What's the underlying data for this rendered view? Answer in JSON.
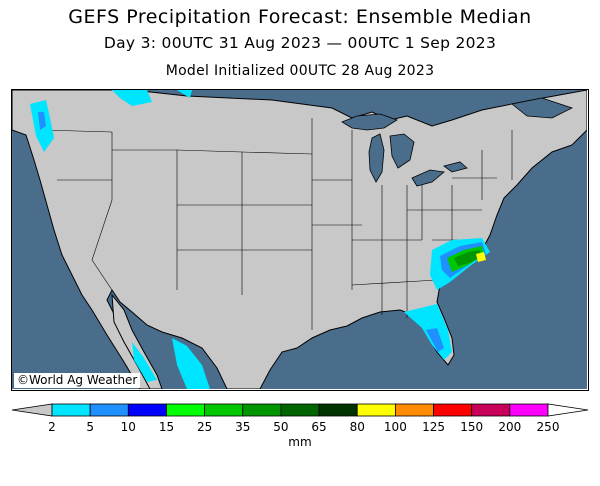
{
  "header": {
    "title": "GEFS Precipitation Forecast: Ensemble Median",
    "subtitle": "Day 3: 00UTC 31 Aug 2023 — 00UTC 1 Sep 2023",
    "init": "Model Initialized 00UTC 28 Aug 2023"
  },
  "map": {
    "credit": "©World Ag Weather",
    "ocean_color": "#4a6d8c",
    "land_color": "#c8c8c8"
  },
  "legend": {
    "units": "mm",
    "tick_labels": [
      "2",
      "5",
      "10",
      "15",
      "25",
      "35",
      "50",
      "65",
      "80",
      "100",
      "125",
      "150",
      "200",
      "250"
    ],
    "colors": [
      "#00e5ff",
      "#1e90ff",
      "#0000ff",
      "#00ff00",
      "#00c800",
      "#009600",
      "#006400",
      "#003200",
      "#ffff00",
      "#ff8c00",
      "#ff0000",
      "#c8005a",
      "#ff00ff",
      "#9664c8"
    ]
  }
}
